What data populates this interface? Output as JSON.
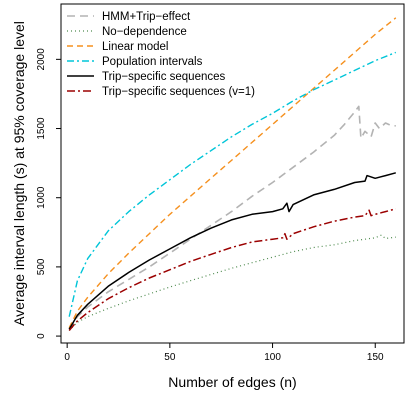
{
  "chart_data": {
    "type": "line",
    "title": "",
    "xlabel": "Number of edges (n)",
    "ylabel": "Average interval length (s) at 95% coverage level",
    "xlim": [
      -3,
      164
    ],
    "ylim": [
      -50,
      2400
    ],
    "x_ticks": [
      "0",
      "50",
      "100",
      "150"
    ],
    "y_ticks": [
      "0",
      "500",
      "1000",
      "1500",
      "2000"
    ],
    "legend_position": "top-left",
    "grid": false,
    "series": [
      {
        "name": "HMM+Trip−effect",
        "color": "#b3b3b3",
        "dash": "8,5",
        "width": 1.6,
        "x": [
          1,
          5,
          10,
          20,
          30,
          40,
          50,
          60,
          70,
          80,
          90,
          100,
          110,
          120,
          130,
          135,
          140,
          142,
          143,
          145,
          148,
          150,
          152,
          155,
          158,
          160
        ],
        "y": [
          50,
          140,
          210,
          320,
          410,
          500,
          600,
          700,
          800,
          900,
          1010,
          1110,
          1220,
          1330,
          1450,
          1530,
          1620,
          1660,
          1430,
          1480,
          1440,
          1540,
          1500,
          1540,
          1520,
          1520
        ]
      },
      {
        "name": "No−dependence",
        "color": "#4e8a4e",
        "dash": "1,3",
        "width": 1.2,
        "x": [
          1,
          5,
          10,
          20,
          30,
          40,
          50,
          60,
          70,
          80,
          90,
          100,
          110,
          120,
          130,
          140,
          150,
          153,
          155,
          160
        ],
        "y": [
          40,
          100,
          140,
          200,
          255,
          305,
          355,
          400,
          445,
          490,
          530,
          570,
          610,
          640,
          660,
          690,
          710,
          730,
          705,
          715
        ]
      },
      {
        "name": "Linear model",
        "color": "#f5901e",
        "dash": "6,4",
        "width": 1.4,
        "x": [
          1,
          5,
          10,
          20,
          30,
          40,
          50,
          60,
          70,
          80,
          90,
          100,
          110,
          120,
          130,
          140,
          150,
          160
        ],
        "y": [
          60,
          180,
          280,
          450,
          600,
          740,
          880,
          1010,
          1140,
          1270,
          1400,
          1530,
          1660,
          1790,
          1920,
          2050,
          2180,
          2300
        ]
      },
      {
        "name": "Population intervals",
        "color": "#00c5d8",
        "dash": "7,3,2,3",
        "width": 1.4,
        "x": [
          1,
          5,
          10,
          20,
          30,
          40,
          50,
          60,
          70,
          80,
          90,
          100,
          110,
          120,
          130,
          140,
          150,
          160
        ],
        "y": [
          140,
          400,
          560,
          760,
          900,
          1020,
          1130,
          1240,
          1340,
          1440,
          1530,
          1610,
          1700,
          1780,
          1850,
          1920,
          1990,
          2050
        ]
      },
      {
        "name": "Trip−specific sequences",
        "color": "#000000",
        "dash": "",
        "width": 1.5,
        "x": [
          1,
          5,
          10,
          20,
          30,
          40,
          50,
          60,
          70,
          80,
          90,
          100,
          105,
          107,
          108,
          110,
          120,
          130,
          140,
          145,
          146,
          150,
          155,
          160
        ],
        "y": [
          50,
          150,
          230,
          360,
          460,
          550,
          630,
          710,
          780,
          840,
          880,
          900,
          920,
          960,
          900,
          950,
          1020,
          1060,
          1110,
          1120,
          1160,
          1140,
          1160,
          1180
        ]
      },
      {
        "name": "Trip−specific sequences (v=1)",
        "color": "#9b0000",
        "dash": "8,3,2,3",
        "width": 1.5,
        "x": [
          1,
          5,
          10,
          20,
          30,
          40,
          50,
          60,
          70,
          80,
          90,
          100,
          105,
          106,
          107,
          110,
          120,
          130,
          140,
          145,
          147,
          148,
          150,
          155,
          160
        ],
        "y": [
          40,
          110,
          170,
          270,
          350,
          420,
          480,
          540,
          590,
          640,
          680,
          700,
          710,
          740,
          700,
          740,
          790,
          830,
          860,
          870,
          910,
          870,
          880,
          900,
          920
        ]
      }
    ]
  }
}
